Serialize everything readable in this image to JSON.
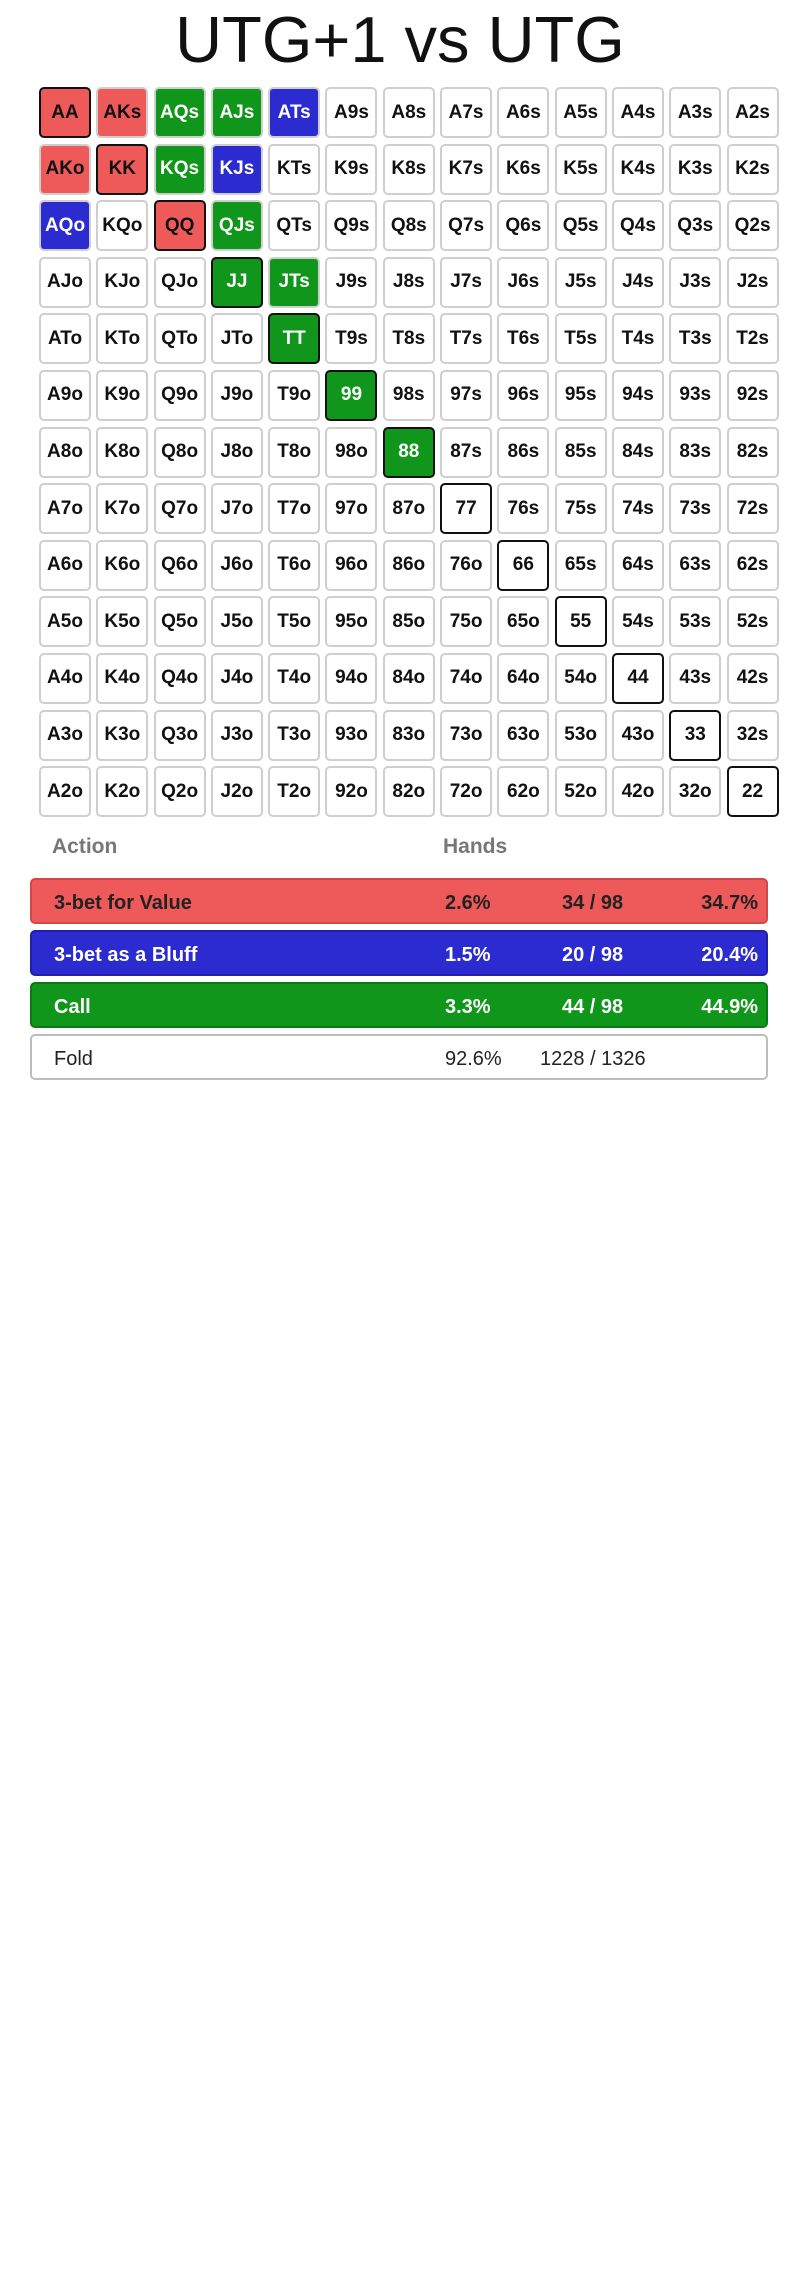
{
  "title": "UTG+1 vs UTG",
  "colors": {
    "value": "#ee5a5a",
    "bluff": "#2b2bd0",
    "call": "#10961a",
    "fold": "#ffffff"
  },
  "grid": [
    [
      "AA",
      "AKs",
      "AQs",
      "AJs",
      "ATs",
      "A9s",
      "A8s",
      "A7s",
      "A6s",
      "A5s",
      "A4s",
      "A3s",
      "A2s"
    ],
    [
      "AKo",
      "KK",
      "KQs",
      "KJs",
      "KTs",
      "K9s",
      "K8s",
      "K7s",
      "K6s",
      "K5s",
      "K4s",
      "K3s",
      "K2s"
    ],
    [
      "AQo",
      "KQo",
      "QQ",
      "QJs",
      "QTs",
      "Q9s",
      "Q8s",
      "Q7s",
      "Q6s",
      "Q5s",
      "Q4s",
      "Q3s",
      "Q2s"
    ],
    [
      "AJo",
      "KJo",
      "QJo",
      "JJ",
      "JTs",
      "J9s",
      "J8s",
      "J7s",
      "J6s",
      "J5s",
      "J4s",
      "J3s",
      "J2s"
    ],
    [
      "ATo",
      "KTo",
      "QTo",
      "JTo",
      "TT",
      "T9s",
      "T8s",
      "T7s",
      "T6s",
      "T5s",
      "T4s",
      "T3s",
      "T2s"
    ],
    [
      "A9o",
      "K9o",
      "Q9o",
      "J9o",
      "T9o",
      "99",
      "98s",
      "97s",
      "96s",
      "95s",
      "94s",
      "93s",
      "92s"
    ],
    [
      "A8o",
      "K8o",
      "Q8o",
      "J8o",
      "T8o",
      "98o",
      "88",
      "87s",
      "86s",
      "85s",
      "84s",
      "83s",
      "82s"
    ],
    [
      "A7o",
      "K7o",
      "Q7o",
      "J7o",
      "T7o",
      "97o",
      "87o",
      "77",
      "76s",
      "75s",
      "74s",
      "73s",
      "72s"
    ],
    [
      "A6o",
      "K6o",
      "Q6o",
      "J6o",
      "T6o",
      "96o",
      "86o",
      "76o",
      "66",
      "65s",
      "64s",
      "63s",
      "62s"
    ],
    [
      "A5o",
      "K5o",
      "Q5o",
      "J5o",
      "T5o",
      "95o",
      "85o",
      "75o",
      "65o",
      "55",
      "54s",
      "53s",
      "52s"
    ],
    [
      "A4o",
      "K4o",
      "Q4o",
      "J4o",
      "T4o",
      "94o",
      "84o",
      "74o",
      "64o",
      "54o",
      "44",
      "43s",
      "42s"
    ],
    [
      "A3o",
      "K3o",
      "Q3o",
      "J3o",
      "T3o",
      "93o",
      "83o",
      "73o",
      "63o",
      "53o",
      "43o",
      "33",
      "32s"
    ],
    [
      "A2o",
      "K2o",
      "Q2o",
      "J2o",
      "T2o",
      "92o",
      "82o",
      "72o",
      "62o",
      "52o",
      "42o",
      "32o",
      "22"
    ]
  ],
  "actions_by_hand": {
    "AA": "value",
    "AKs": "value",
    "AKo": "value",
    "KK": "value",
    "QQ": "value",
    "ATs": "bluff",
    "KJs": "bluff",
    "AQo": "bluff",
    "AQs": "call",
    "AJs": "call",
    "KQs": "call",
    "QJs": "call",
    "JJ": "call",
    "JTs": "call",
    "TT": "call",
    "99": "call",
    "88": "call"
  },
  "legend": {
    "action_header": "Action",
    "hands_header": "Hands",
    "rows": [
      {
        "key": "value",
        "label": "3-bet for Value",
        "pct": "2.6%",
        "count": "34 / 98",
        "share": "34.7%"
      },
      {
        "key": "bluff",
        "label": "3-bet as a Bluff",
        "pct": "1.5%",
        "count": "20 / 98",
        "share": "20.4%"
      },
      {
        "key": "call",
        "label": "Call",
        "pct": "3.3%",
        "count": "44 / 98",
        "share": "44.9%"
      },
      {
        "key": "fold",
        "label": "Fold",
        "pct": "92.6%",
        "count": "1228 / 1326",
        "share": ""
      }
    ]
  }
}
